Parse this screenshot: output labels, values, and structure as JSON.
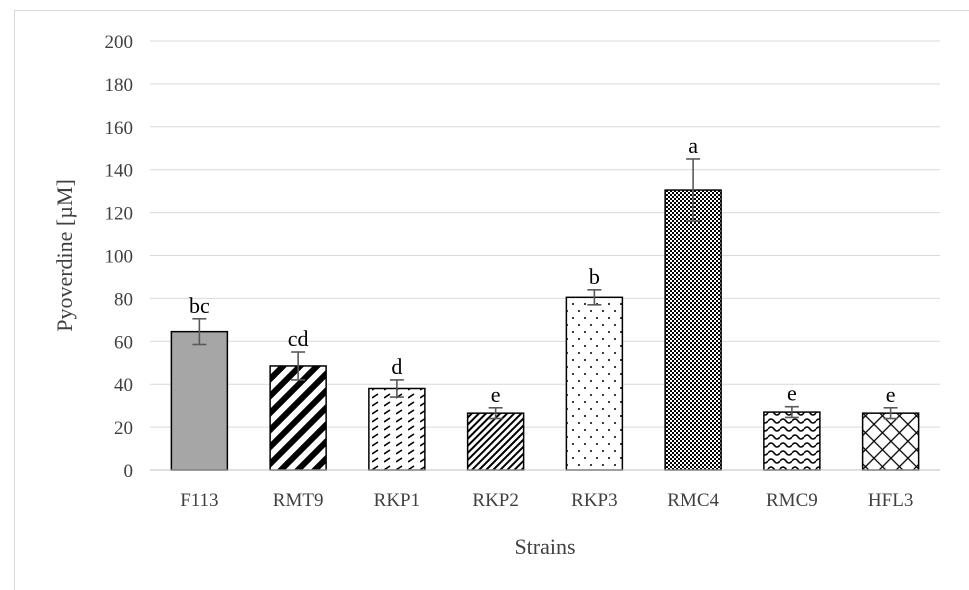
{
  "chart_data": {
    "type": "bar",
    "categories": [
      "F113",
      "RMT9",
      "RKP1",
      "RKP2",
      "RKP3",
      "RMC4",
      "RMC9",
      "HFL3"
    ],
    "values": [
      64.5,
      48.5,
      38,
      26.5,
      80.5,
      130.5,
      27,
      26.5
    ],
    "errors": [
      6,
      6.5,
      4,
      2.5,
      3.5,
      14.5,
      2.5,
      2.5
    ],
    "significance_labels": [
      "bc",
      "cd",
      "d",
      "e",
      "b",
      "a",
      "e",
      "e"
    ],
    "patterns": [
      "solid-gray",
      "diagonal-thick",
      "dashes",
      "diagonal-thin",
      "dots",
      "checker",
      "waves",
      "crosshatch"
    ],
    "xlabel": "Strains",
    "ylabel": "Pyoverdine [µM]",
    "ylim": [
      0,
      200
    ],
    "yticks": [
      "0",
      "20",
      "40",
      "60",
      "80",
      "100",
      "120",
      "140",
      "160",
      "180",
      "200"
    ],
    "grid": true,
    "legend": "none",
    "colors": {
      "bar_fill_solid": "#a6a6a6",
      "bar_outline": "#000000",
      "grid": "#d9d9d9",
      "error_bar": "#595959"
    }
  }
}
